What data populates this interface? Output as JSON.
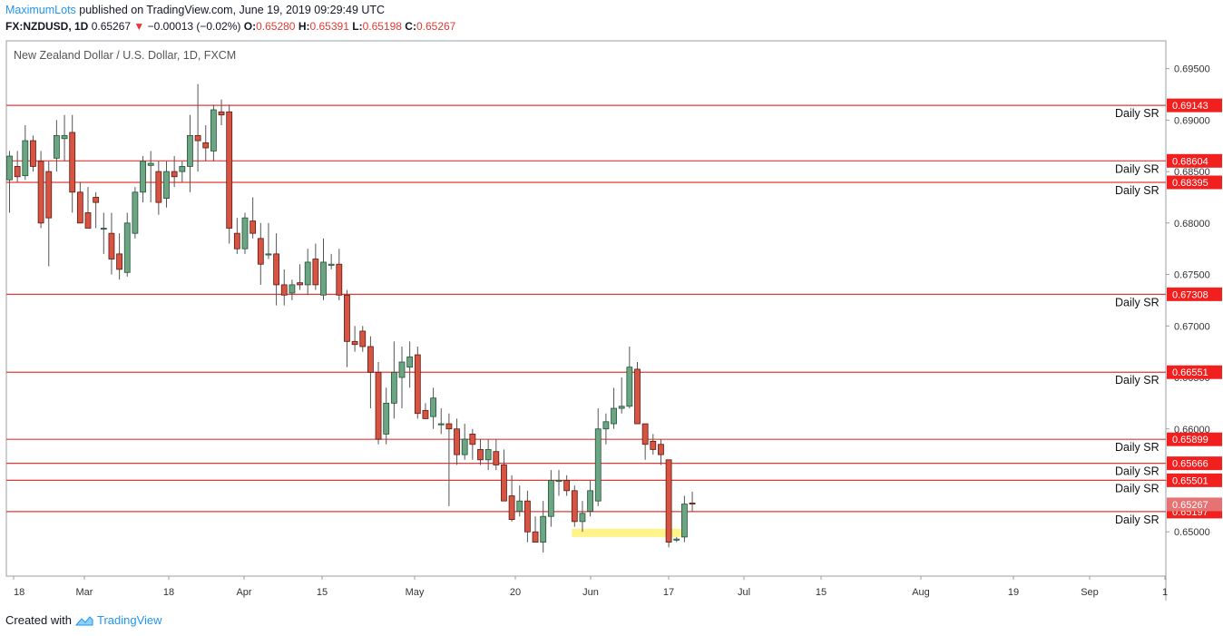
{
  "header": {
    "username": "MaximumLots",
    "published_text": " published on TradingView.com, June 19, 2019 09:29:49 UTC",
    "symbol": "FX:NZDUSD, 1D",
    "last": "0.65267",
    "change_arrow": "▼",
    "change": "−0.00013 (−0.02%)",
    "o_label": "O:",
    "o": "0.65280",
    "h_label": "H:",
    "h": "0.65391",
    "l_label": "L:",
    "l": "0.65198",
    "c_label": "C:",
    "c": "0.65267"
  },
  "footer": {
    "created_with": "Created with",
    "brand": "TradingView",
    "logo_icon": "tradingview-cloud-icon"
  },
  "chart_data": {
    "type": "candlestick",
    "title": "New Zealand Dollar / U.S. Dollar, 1D, FXCM",
    "ylim": [
      0.6457,
      0.6977
    ],
    "y_ticks": [
      "0.69500",
      "0.69000",
      "0.68500",
      "0.68000",
      "0.67500",
      "0.67000",
      "0.66500",
      "0.66000",
      "0.65500",
      "0.65000"
    ],
    "x_tick_labels": [
      "18",
      "Mar",
      "18",
      "Apr",
      "15",
      "May",
      "20",
      "Jun",
      "17",
      "Jul",
      "15",
      "Aug",
      "19",
      "Sep",
      "1"
    ],
    "sr_levels": [
      {
        "price": 0.69143,
        "label": "0.69143",
        "name": "Daily SR"
      },
      {
        "price": 0.68604,
        "label": "0.68604",
        "name": "Daily SR"
      },
      {
        "price": 0.68395,
        "label": "0.68395",
        "name": "Daily SR"
      },
      {
        "price": 0.67308,
        "label": "0.67308",
        "name": "Daily SR"
      },
      {
        "price": 0.66551,
        "label": "0.66551",
        "name": "Daily SR"
      },
      {
        "price": 0.65899,
        "label": "0.65899",
        "name": "Daily SR"
      },
      {
        "price": 0.65666,
        "label": "0.65666",
        "name": "Daily SR"
      },
      {
        "price": 0.65501,
        "label": "0.65501",
        "name": "Daily SR"
      },
      {
        "price": 0.65197,
        "label": "0.65197",
        "name": "Daily SR"
      }
    ],
    "current_price": {
      "price": 0.65267,
      "label": "0.65267"
    },
    "highlight_zone": {
      "price_top": 0.6503,
      "price_bottom": 0.6495
    },
    "candles": [
      [
        0.6842,
        0.687,
        0.681,
        0.6865
      ],
      [
        0.6855,
        0.687,
        0.684,
        0.6845
      ],
      [
        0.6846,
        0.6895,
        0.6842,
        0.688
      ],
      [
        0.688,
        0.6885,
        0.685,
        0.6855
      ],
      [
        0.686,
        0.687,
        0.6795,
        0.68
      ],
      [
        0.685,
        0.686,
        0.6758,
        0.6805
      ],
      [
        0.6863,
        0.69,
        0.685,
        0.6885
      ],
      [
        0.6882,
        0.6905,
        0.686,
        0.6885
      ],
      [
        0.6888,
        0.6905,
        0.681,
        0.683
      ],
      [
        0.683,
        0.684,
        0.68,
        0.68
      ],
      [
        0.681,
        0.6835,
        0.6795,
        0.6795
      ],
      [
        0.6825,
        0.683,
        0.6795,
        0.682
      ],
      [
        0.6795,
        0.681,
        0.677,
        0.6795
      ],
      [
        0.679,
        0.681,
        0.675,
        0.6765
      ],
      [
        0.677,
        0.679,
        0.6745,
        0.6755
      ],
      [
        0.6752,
        0.681,
        0.6748,
        0.68
      ],
      [
        0.679,
        0.6835,
        0.6785,
        0.683
      ],
      [
        0.683,
        0.6865,
        0.682,
        0.686
      ],
      [
        0.6856,
        0.687,
        0.682,
        0.6858
      ],
      [
        0.685,
        0.686,
        0.6808,
        0.682
      ],
      [
        0.6824,
        0.686,
        0.6815,
        0.685
      ],
      [
        0.685,
        0.6865,
        0.6835,
        0.6845
      ],
      [
        0.685,
        0.686,
        0.684,
        0.6855
      ],
      [
        0.6855,
        0.6905,
        0.683,
        0.6885
      ],
      [
        0.6885,
        0.6935,
        0.685,
        0.688
      ],
      [
        0.6878,
        0.6895,
        0.686,
        0.6873
      ],
      [
        0.687,
        0.6915,
        0.686,
        0.691
      ],
      [
        0.6908,
        0.692,
        0.6895,
        0.6905
      ],
      [
        0.6908,
        0.6915,
        0.678,
        0.6795
      ],
      [
        0.679,
        0.6805,
        0.677,
        0.6775
      ],
      [
        0.6775,
        0.681,
        0.677,
        0.6805
      ],
      [
        0.6802,
        0.6825,
        0.6785,
        0.679
      ],
      [
        0.6785,
        0.68,
        0.674,
        0.676
      ],
      [
        0.677,
        0.68,
        0.6765,
        0.677
      ],
      [
        0.677,
        0.679,
        0.672,
        0.674
      ],
      [
        0.674,
        0.6755,
        0.672,
        0.673
      ],
      [
        0.6732,
        0.6745,
        0.6725,
        0.674
      ],
      [
        0.6742,
        0.676,
        0.6735,
        0.674
      ],
      [
        0.674,
        0.6775,
        0.673,
        0.6762
      ],
      [
        0.6765,
        0.678,
        0.6735,
        0.674
      ],
      [
        0.673,
        0.6785,
        0.6725,
        0.6762
      ],
      [
        0.676,
        0.677,
        0.6755,
        0.676
      ],
      [
        0.676,
        0.6775,
        0.6725,
        0.673
      ],
      [
        0.673,
        0.6735,
        0.666,
        0.6685
      ],
      [
        0.6685,
        0.67,
        0.6675,
        0.6682
      ],
      [
        0.6695,
        0.67,
        0.6675,
        0.668
      ],
      [
        0.668,
        0.669,
        0.662,
        0.6655
      ],
      [
        0.6655,
        0.6665,
        0.6585,
        0.659
      ],
      [
        0.6595,
        0.664,
        0.6585,
        0.6625
      ],
      [
        0.6625,
        0.6685,
        0.661,
        0.6655
      ],
      [
        0.665,
        0.668,
        0.662,
        0.6665
      ],
      [
        0.666,
        0.6685,
        0.664,
        0.667
      ],
      [
        0.6672,
        0.668,
        0.661,
        0.6615
      ],
      [
        0.6618,
        0.6625,
        0.661,
        0.661
      ],
      [
        0.6612,
        0.664,
        0.66,
        0.663
      ],
      [
        0.6605,
        0.662,
        0.6595,
        0.6605
      ],
      [
        0.6605,
        0.6615,
        0.6525,
        0.66
      ],
      [
        0.66,
        0.661,
        0.6565,
        0.6575
      ],
      [
        0.6575,
        0.6605,
        0.657,
        0.659
      ],
      [
        0.6595,
        0.66,
        0.657,
        0.6585
      ],
      [
        0.658,
        0.659,
        0.6565,
        0.657
      ],
      [
        0.657,
        0.659,
        0.656,
        0.658
      ],
      [
        0.6578,
        0.659,
        0.656,
        0.6565
      ],
      [
        0.6565,
        0.658,
        0.653,
        0.653
      ],
      [
        0.6535,
        0.6555,
        0.651,
        0.6512
      ],
      [
        0.652,
        0.6545,
        0.6515,
        0.653
      ],
      [
        0.653,
        0.654,
        0.649,
        0.65
      ],
      [
        0.65,
        0.6515,
        0.649,
        0.649
      ],
      [
        0.649,
        0.653,
        0.648,
        0.6515
      ],
      [
        0.6515,
        0.656,
        0.6505,
        0.655
      ],
      [
        0.655,
        0.656,
        0.6535,
        0.655
      ],
      [
        0.655,
        0.6555,
        0.6535,
        0.654
      ],
      [
        0.654,
        0.6545,
        0.6505,
        0.651
      ],
      [
        0.651,
        0.653,
        0.65,
        0.6518
      ],
      [
        0.652,
        0.655,
        0.6515,
        0.654
      ],
      [
        0.653,
        0.662,
        0.6525,
        0.66
      ],
      [
        0.66,
        0.6615,
        0.6585,
        0.6607
      ],
      [
        0.6605,
        0.664,
        0.66,
        0.662
      ],
      [
        0.662,
        0.665,
        0.6615,
        0.6622
      ],
      [
        0.6622,
        0.668,
        0.662,
        0.666
      ],
      [
        0.6658,
        0.6665,
        0.6605,
        0.6605
      ],
      [
        0.6605,
        0.6605,
        0.657,
        0.6585
      ],
      [
        0.6588,
        0.6595,
        0.6575,
        0.658
      ],
      [
        0.6585,
        0.659,
        0.6565,
        0.6575
      ],
      [
        0.657,
        0.657,
        0.6485,
        0.649
      ],
      [
        0.6492,
        0.6495,
        0.649,
        0.6493
      ],
      [
        0.6495,
        0.6535,
        0.649,
        0.6527
      ],
      [
        0.6528,
        0.6539,
        0.652,
        0.6527
      ]
    ]
  }
}
